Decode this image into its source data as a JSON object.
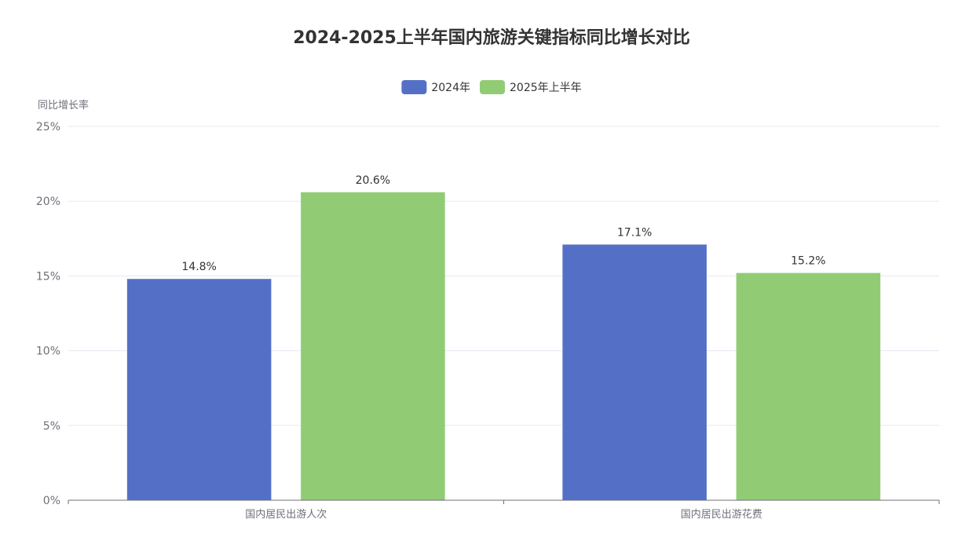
{
  "chart_data": {
    "type": "bar",
    "title": "2024-2025上半年国内旅游关键指标同比增长对比",
    "ylabel": "同比增长率",
    "xlabel": "",
    "categories": [
      "国内居民出游人次",
      "国内居民出游花费"
    ],
    "series": [
      {
        "name": "2024年",
        "values": [
          14.8,
          17.1
        ],
        "color": "#5470c6"
      },
      {
        "name": "2025年上半年",
        "values": [
          20.6,
          15.2
        ],
        "color": "#91cc75"
      }
    ],
    "ylim": [
      0,
      25
    ],
    "yticks": [
      0,
      5,
      10,
      15,
      20,
      25
    ],
    "ytick_labels": [
      "0%",
      "5%",
      "10%",
      "15%",
      "20%",
      "25%"
    ],
    "value_suffix": "%",
    "value_decimals": 1,
    "grid": true,
    "legend_position": "top-center"
  }
}
